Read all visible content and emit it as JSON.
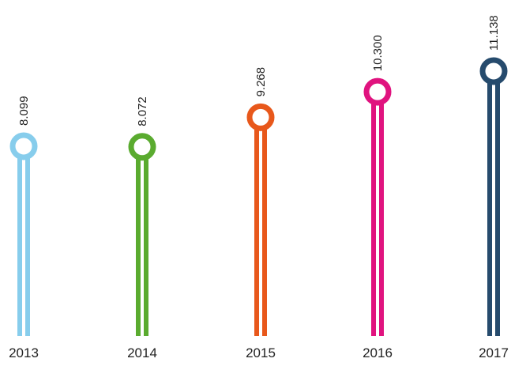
{
  "chart_data": {
    "type": "lollipop",
    "categories": [
      "2013",
      "2014",
      "2015",
      "2016",
      "2017"
    ],
    "values": [
      8099,
      8072,
      9268,
      10300,
      11138
    ],
    "value_labels": [
      "8.099",
      "8.072",
      "9.268",
      "10.300",
      "11.138"
    ],
    "colors": [
      "#87cdec",
      "#5aab2f",
      "#e8581b",
      "#e0137f",
      "#264b6d"
    ]
  }
}
